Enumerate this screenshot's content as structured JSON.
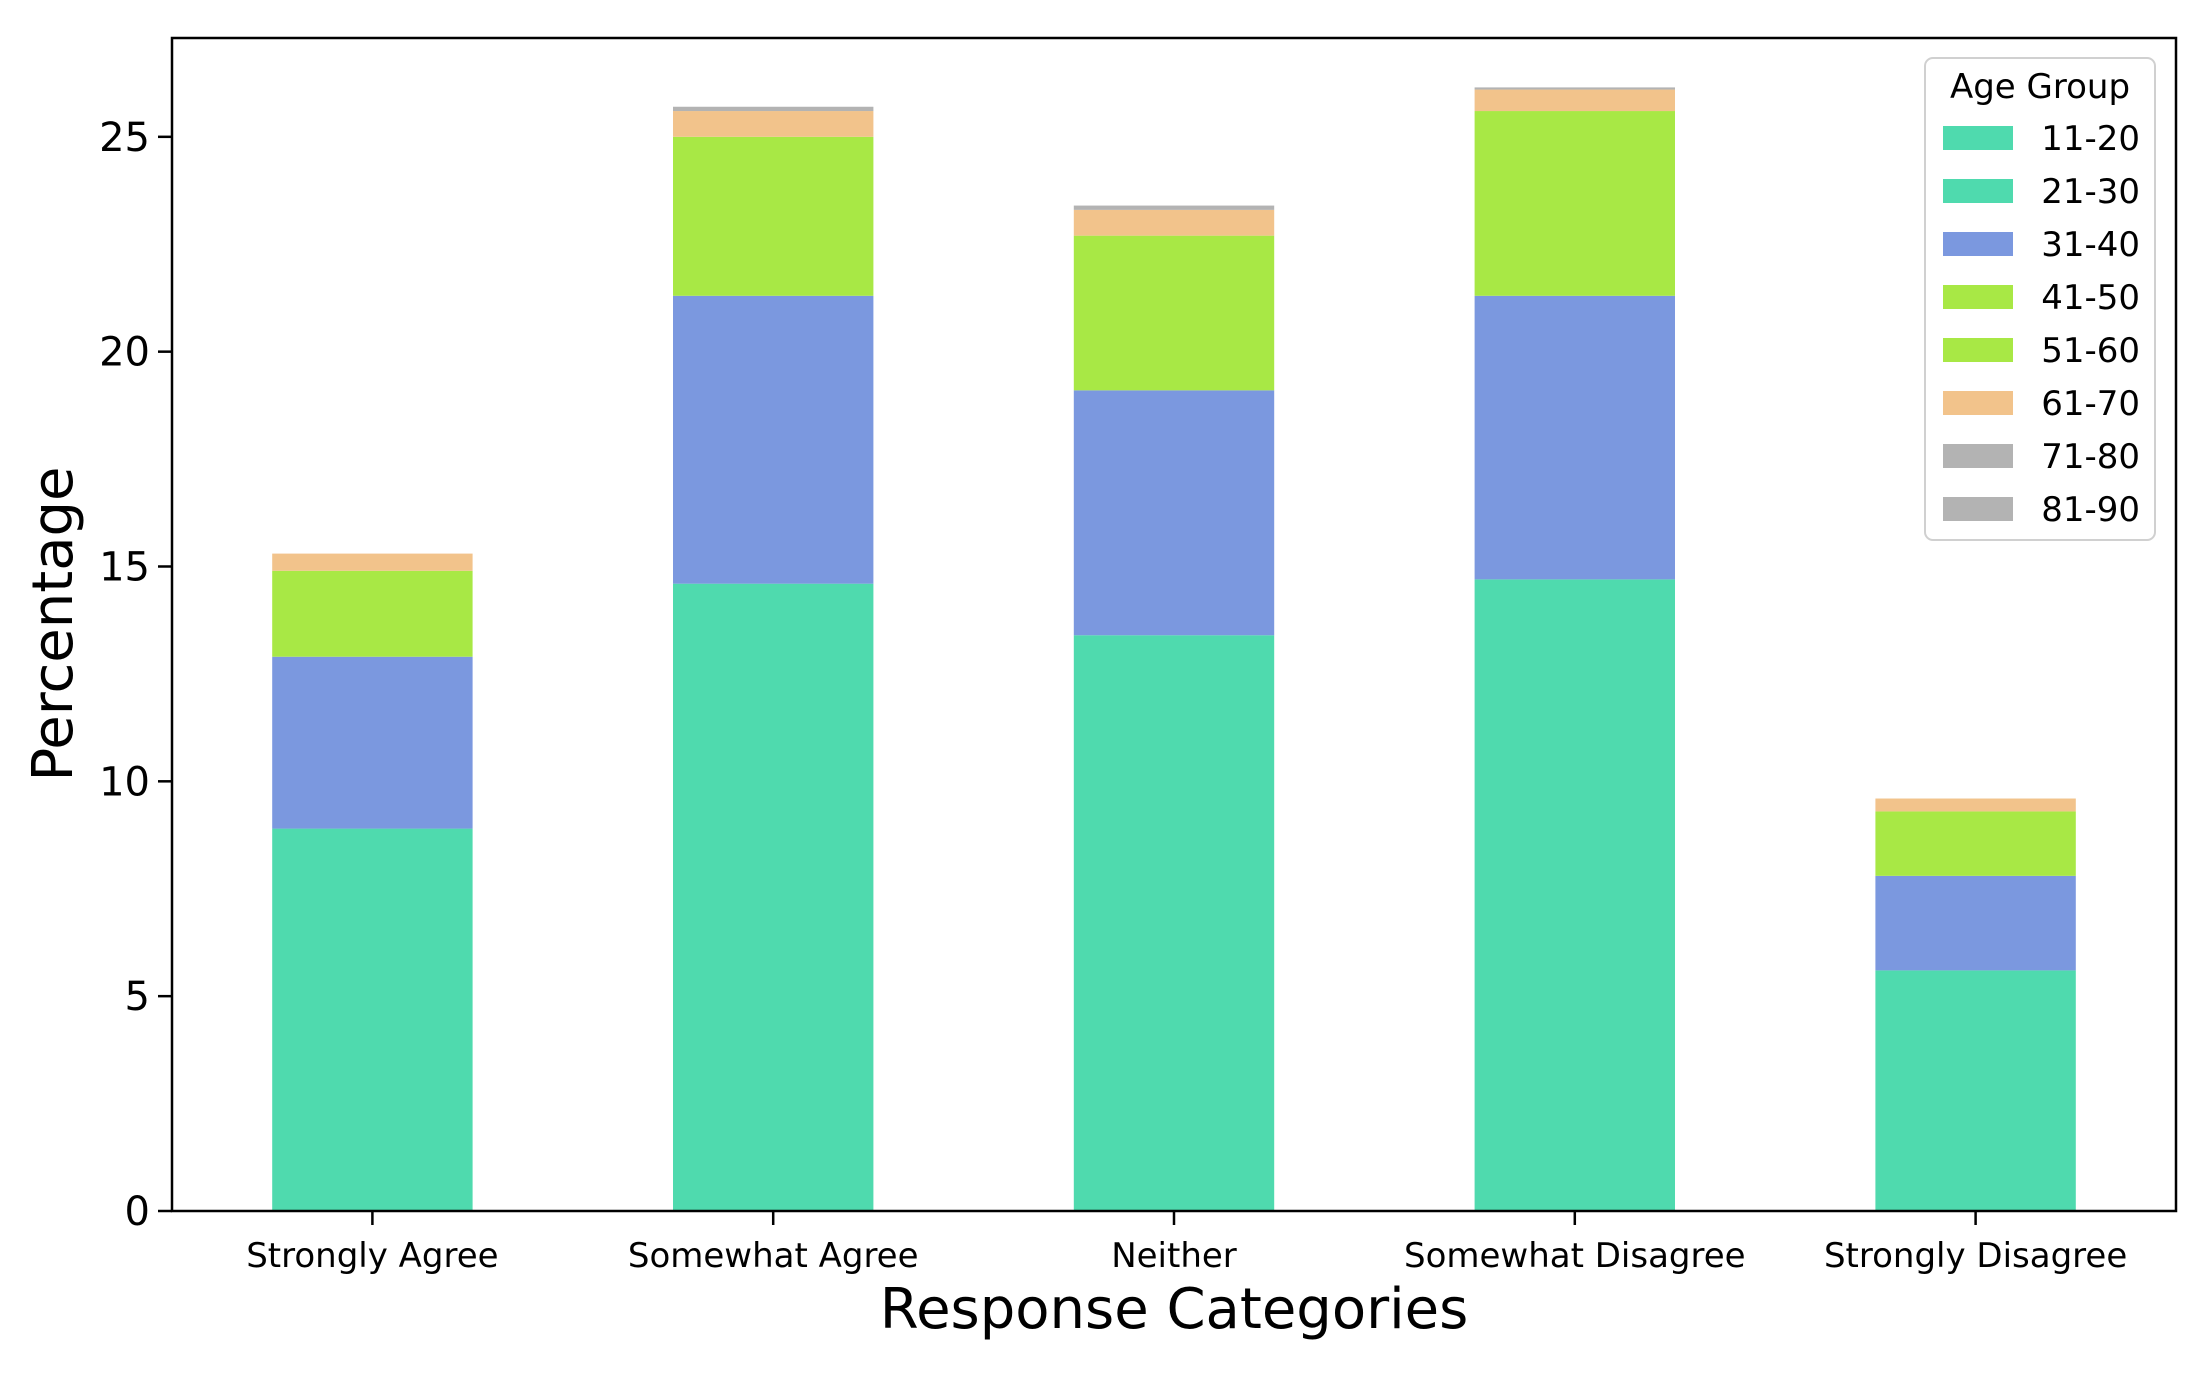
{
  "chart_data": {
    "type": "bar",
    "stacked": true,
    "title": "",
    "xlabel": "Response Categories",
    "ylabel": "Percentage",
    "ylim": [
      0,
      27.3
    ],
    "yticks": [
      0,
      5,
      10,
      15,
      20,
      25
    ],
    "categories": [
      "Strongly Agree",
      "Somewhat Agree",
      "Neither",
      "Somewhat Disagree",
      "Strongly Disagree"
    ],
    "legend": {
      "title": "Age Group",
      "position": "top-right"
    },
    "grid": false,
    "series": [
      {
        "name": "11-20",
        "color": "#4fdaae",
        "values": [
          0,
          0,
          0,
          0,
          0
        ]
      },
      {
        "name": "21-30",
        "color": "#4fdaae",
        "values": [
          8.9,
          14.6,
          13.4,
          14.7,
          5.6
        ]
      },
      {
        "name": "31-40",
        "color": "#7b98df",
        "values": [
          4.0,
          6.7,
          5.7,
          6.6,
          2.2
        ]
      },
      {
        "name": "41-50",
        "color": "#a8e845",
        "values": [
          0,
          0,
          0,
          0,
          0
        ]
      },
      {
        "name": "51-60",
        "color": "#a8e845",
        "values": [
          2.0,
          3.7,
          3.6,
          4.3,
          1.5
        ]
      },
      {
        "name": "61-70",
        "color": "#f2c38b",
        "values": [
          0.4,
          0.6,
          0.6,
          0.5,
          0.3
        ]
      },
      {
        "name": "71-80",
        "color": "#b3b3b3",
        "values": [
          0,
          0.1,
          0.1,
          0.05,
          0
        ]
      },
      {
        "name": "81-90",
        "color": "#b3b3b3",
        "values": [
          0,
          0,
          0,
          0,
          0
        ]
      }
    ]
  }
}
